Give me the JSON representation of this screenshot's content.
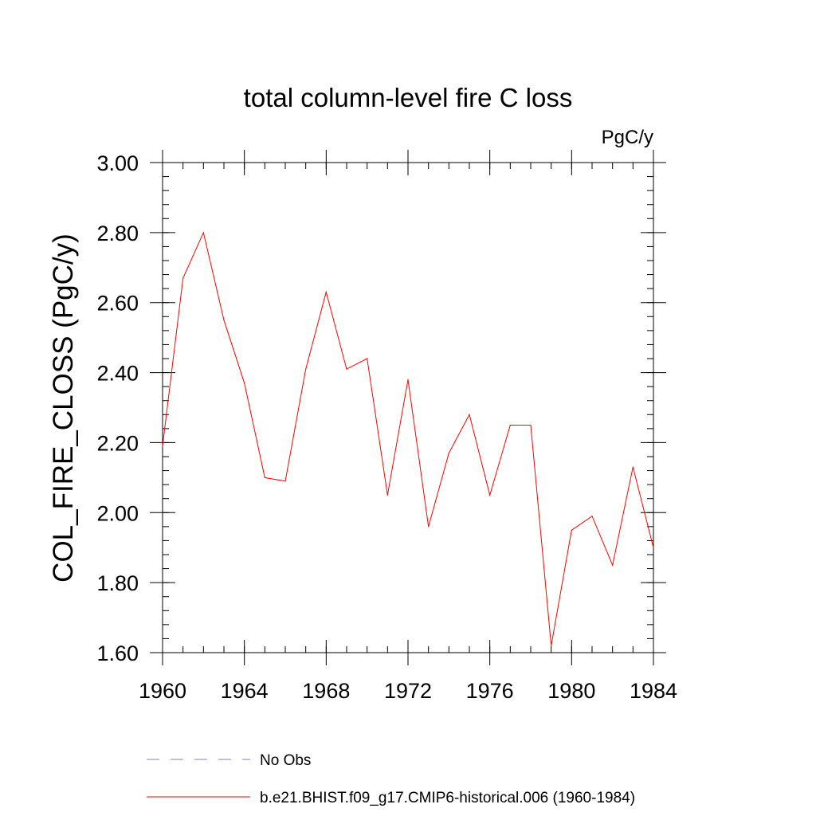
{
  "chart_data": {
    "type": "line",
    "title": "total column-level fire C loss",
    "units_label": "PgC/y",
    "ylabel": "COL_FIRE_CLOSS  (PgC/y)",
    "xlabel": "",
    "xlim": [
      1960,
      1984
    ],
    "ylim": [
      1.6,
      3.0
    ],
    "x_ticks": [
      1960,
      1964,
      1968,
      1972,
      1976,
      1980,
      1984
    ],
    "x_tick_labels": [
      "1960",
      "1964",
      "1968",
      "1972",
      "1976",
      "1980",
      "1984"
    ],
    "y_ticks": [
      1.6,
      1.8,
      2.0,
      2.2,
      2.4,
      2.6,
      2.8,
      3.0
    ],
    "y_tick_labels": [
      "1.60",
      "1.80",
      "2.00",
      "2.20",
      "2.40",
      "2.60",
      "2.80",
      "3.00"
    ],
    "x_minor_step": 1,
    "y_minor_step": 0.04,
    "grid": false,
    "legend_position": "bottom",
    "series": [
      {
        "name": "b.e21.BHIST.f09_g17.CMIP6-historical.006 (1960-1984)",
        "color": "#ff0000",
        "dash": "solid",
        "x": [
          1960,
          1961,
          1962,
          1963,
          1964,
          1965,
          1966,
          1967,
          1968,
          1969,
          1970,
          1971,
          1972,
          1973,
          1974,
          1975,
          1976,
          1977,
          1978,
          1979,
          1980,
          1981,
          1982,
          1983,
          1984
        ],
        "values": [
          2.19,
          2.67,
          2.8,
          2.55,
          2.37,
          2.1,
          2.09,
          2.41,
          2.63,
          2.41,
          2.44,
          2.05,
          2.38,
          1.96,
          2.17,
          2.28,
          2.05,
          2.25,
          2.25,
          1.62,
          1.95,
          1.99,
          1.85,
          2.13,
          1.9
        ]
      }
    ],
    "legend": [
      {
        "label": "No Obs",
        "color": "#7f7fcc",
        "dash": "dashed"
      },
      {
        "label": "b.e21.BHIST.f09_g17.CMIP6-historical.006 (1960-1984)",
        "color": "#ff0000",
        "dash": "solid"
      }
    ]
  }
}
